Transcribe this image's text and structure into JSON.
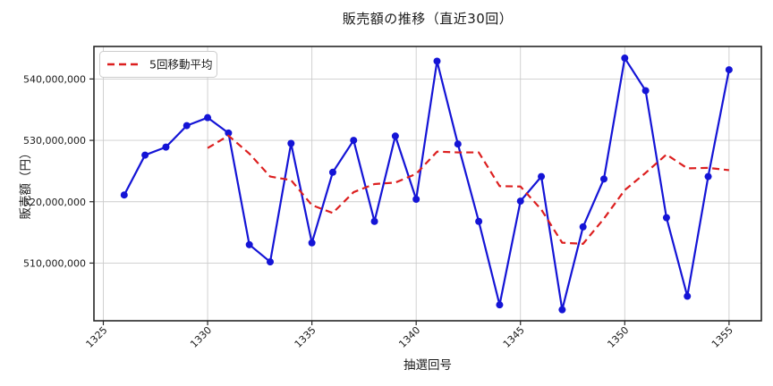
{
  "chart_data": {
    "type": "line",
    "title": "販売額の推移（直近30回）",
    "xlabel": "抽選回号",
    "ylabel": "販売額（円）",
    "x": [
      1326,
      1327,
      1328,
      1329,
      1330,
      1331,
      1332,
      1333,
      1334,
      1335,
      1336,
      1337,
      1338,
      1339,
      1340,
      1341,
      1342,
      1343,
      1344,
      1345,
      1346,
      1347,
      1348,
      1349,
      1350,
      1351,
      1352,
      1353,
      1354,
      1355
    ],
    "series": [
      {
        "name": "販売額",
        "color": "#1414d6",
        "style": "solid",
        "marker": "circle",
        "values": [
          521100000,
          527600000,
          528900000,
          532400000,
          533700000,
          531200000,
          513000000,
          510200000,
          529500000,
          513300000,
          524800000,
          530000000,
          516800000,
          530700000,
          520400000,
          542900000,
          529400000,
          516800000,
          503200000,
          520100000,
          524100000,
          502400000,
          515900000,
          523700000,
          543400000,
          538100000,
          517400000,
          504600000,
          524100000,
          541500000
        ]
      },
      {
        "name": "5回移動平均",
        "color": "#dc1f1f",
        "style": "dashed",
        "marker": "none",
        "values": [
          null,
          null,
          null,
          null,
          528740000,
          530760000,
          527840000,
          524100000,
          523520000,
          519440000,
          518160000,
          521560000,
          522880000,
          523120000,
          524540000,
          528160000,
          528040000,
          528040000,
          522540000,
          522480000,
          518720000,
          513320000,
          513140000,
          517240000,
          521900000,
          524700000,
          527700000,
          525440000,
          525520000,
          525140000
        ]
      }
    ],
    "xlim": [
      1324.55,
      1356.55
    ],
    "ylim": [
      500600000,
      545300000
    ],
    "xticks": [
      1325,
      1330,
      1335,
      1340,
      1345,
      1350,
      1355
    ],
    "yticks": [
      510000000,
      520000000,
      530000000,
      540000000
    ],
    "grid": true,
    "legend_position": "upper left",
    "legend_items": [
      {
        "label": "5回移動平均",
        "color": "#dc1f1f",
        "style": "dashed"
      }
    ]
  }
}
